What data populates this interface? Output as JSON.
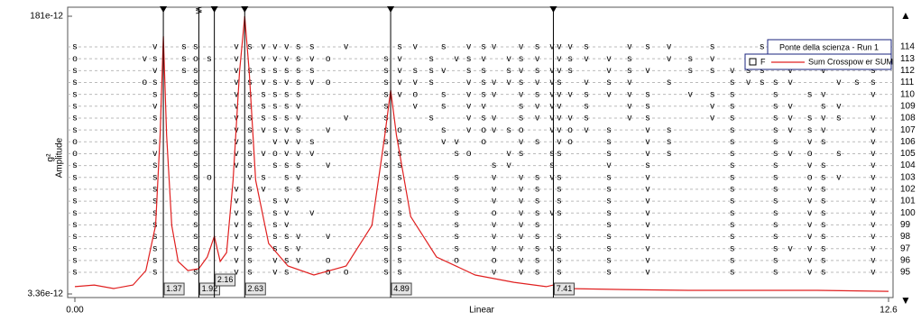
{
  "chart_data": {
    "type": "line",
    "y_label": "Amplitude",
    "y_unit": "g²",
    "x_label": "Linear",
    "xlim": [
      0,
      12.6
    ],
    "xticks": [
      {
        "value": 0,
        "label": "0.00"
      },
      12.6
    ],
    "ylim": [
      3.36e-12,
      1.81e-10
    ],
    "yticks": [
      {
        "value": 1.81e-10,
        "label": "181e-12"
      },
      {
        "value": 3.36e-12,
        "label": "3.36e-12"
      }
    ],
    "log_y": true,
    "legend_title": "Ponte della scienza - Run 1",
    "legend_marker": "F",
    "series": [
      {
        "name": "Sum Crosspow er SUM",
        "color": "#e02020",
        "x": [
          0,
          0.3,
          0.6,
          0.9,
          1.1,
          1.25,
          1.32,
          1.37,
          1.42,
          1.5,
          1.6,
          1.75,
          1.92,
          2.05,
          2.16,
          2.25,
          2.35,
          2.45,
          2.55,
          2.63,
          2.7,
          2.8,
          3.0,
          3.3,
          3.7,
          4.2,
          4.6,
          4.8,
          4.89,
          4.98,
          5.2,
          5.6,
          6.2,
          6.8,
          7.3,
          7.41,
          7.6,
          8.5,
          9.5,
          10.5,
          11.5,
          12.6
        ],
        "values": [
          3.73e-12,
          3.82e-12,
          3.63e-12,
          3.82e-12,
          4.7e-12,
          8.98e-12,
          3.28e-11,
          1.36e-10,
          3.28e-11,
          8.98e-12,
          5.36e-12,
          4.7e-12,
          4.83e-12,
          5.71e-12,
          7.69e-12,
          5.36e-12,
          6.09e-12,
          1.72e-11,
          8.11e-11,
          1.81e-10,
          8.11e-11,
          1.72e-11,
          6.94e-12,
          5.02e-12,
          4.41e-12,
          5.02e-12,
          8.98e-12,
          3.28e-11,
          6.26e-11,
          3.28e-11,
          1.02e-11,
          5.71e-12,
          4.41e-12,
          3.97e-12,
          3.73e-12,
          3.82e-12,
          3.63e-12,
          3.58e-12,
          3.54e-12,
          3.54e-12,
          3.54e-12,
          3.49e-12
        ]
      }
    ],
    "cursors": [
      1.37,
      1.92,
      2.16,
      2.63,
      4.89,
      7.41
    ],
    "cursor_symbol": "≶",
    "scroll_up": "▲",
    "scroll_down": "▼",
    "stability": {
      "columns": [
        0.0,
        1.08,
        1.24,
        1.69,
        1.87,
        2.08,
        2.5,
        2.71,
        2.92,
        3.1,
        3.28,
        3.46,
        3.67,
        3.92,
        4.2,
        4.59,
        4.82,
        5.03,
        5.27,
        5.52,
        5.71,
        5.91,
        6.1,
        6.33,
        6.49,
        6.72,
        6.91,
        7.16,
        7.39,
        7.5,
        7.67,
        7.92,
        8.27,
        8.59,
        8.87,
        9.2,
        9.53,
        9.87,
        10.18,
        10.43,
        10.64,
        10.85,
        11.08,
        11.38,
        11.59,
        11.83,
        12.11,
        12.36
      ],
      "symbol_colors": {
        "s": "#e02020",
        "v": "#f0a000",
        "o": "#000000"
      },
      "orders": [
        114,
        113,
        112,
        111,
        110,
        109,
        108,
        107,
        106,
        105,
        104,
        103,
        102,
        101,
        100,
        99,
        98,
        97,
        96,
        95
      ],
      "rows": [
        {
          "marks": "s vss vsvvvss v  sv s vsv vsvvvs vsv s  s v  s  v"
        },
        {
          "marks": "ovssosv vvvsvo  sv s vsv vsv vsvvs vsv s  s v  vsvv"
        },
        {
          "marks": "s vss vssssss   svssv ss svsvvs vsv ssvss v v  sv v"
        },
        {
          "marks": "sos s vsvsvsvo  svvs  vsvvsvvs vsv s  svssv  vssvv"
        },
        {
          "marks": "s s s vsssss    svo s vsv vsvvvsvvs vss  s sv  vssv"
        },
        {
          "marks": "s v s vssssv    s v s vv  svvv s vs  vs  sv sv  vs v"
        },
        {
          "marks": "s s s vssssv  v s  s  vsv svvvvs vs  vs  svsvs vsvv"
        },
        {
          "marks": "s s s vsvsvs v  so  s vovso vvovs vs  s  svsv  vvs v"
        },
        {
          "marks": "o s s vs vvvs   ss  vv o  vs vo s vs  s  s vs  vvvsv"
        },
        {
          "marks": "o v s vsvovvv   ss   so  vs ss  s vs  s  svo s vvvs s"
        },
        {
          "marks": "s s s vs sss v  ss      sv  s   v s   s  s vs  vvv s"
        },
        {
          "marks": "s s so vs sv    ss   s  v vsvs  s v   s  s osv vsvs s"
        },
        {
          "marks": "s s s vsv ss    ss   s  v vs s  s v   s  s vs  vvv s"
        },
        {
          "marks": "s s s vs sv     ss   s  v vs s  s v   s  s vs  vvs v"
        },
        {
          "marks": "s s s vs sv v   ss   s  o vsvs  s v   s  s vs  vvv s"
        },
        {
          "marks": "s s s vs sv     ss   s  v vs    s v   s  s vs  vsv s"
        },
        {
          "marks": "s s s vs ssv v  ss   s  v vs s  s v   s  s vs  vvvvs"
        },
        {
          "marks": "s s s vs ssv    ss   s  v vsvs  s v   s  svvs  vvvvs"
        },
        {
          "marks": "s s s vs vsv o  ss   o  o vs s  s v   s  s vs  vvsoso"
        },
        {
          "marks": "s s s vs vs  oo ss      v vs s  s v   s  s vs  vvvs s"
        }
      ]
    }
  }
}
